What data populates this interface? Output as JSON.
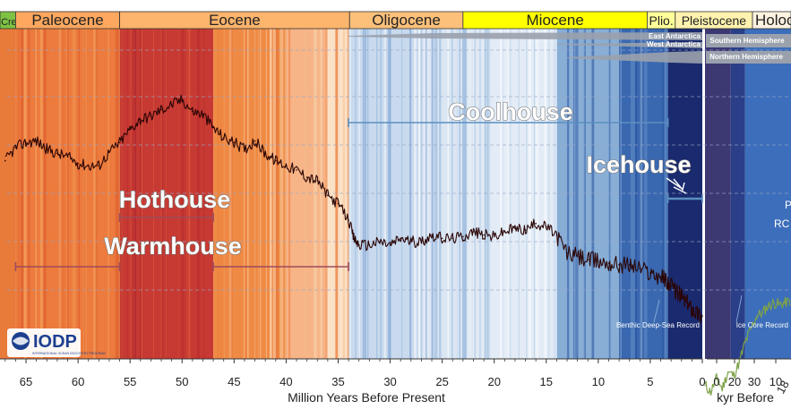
{
  "chart_data": {
    "type": "line",
    "xlabel": "Million Years Before Present",
    "xlabel_right": "kyr Before",
    "xlim_myr": [
      67.5,
      0
    ],
    "xlim_kyr": [
      0,
      15
    ],
    "x_ticks_myr": [
      "65",
      "60",
      "55",
      "50",
      "45",
      "40",
      "35",
      "30",
      "25",
      "20",
      "15",
      "10",
      "5",
      "0"
    ],
    "x_ticks_kyr": [
      "0",
      "20",
      "30",
      "10"
    ],
    "x_ticks_kyr_clipped": "18",
    "epochs": [
      {
        "name": "Cret.",
        "start": 67.5,
        "end": 66.0,
        "color": "#7dc242"
      },
      {
        "name": "Paleocene",
        "start": 66.0,
        "end": 56.0,
        "color": "#fda75f"
      },
      {
        "name": "Eocene",
        "start": 56.0,
        "end": 33.9,
        "color": "#fdb46c"
      },
      {
        "name": "Oligocene",
        "start": 33.9,
        "end": 23.0,
        "color": "#fdc07a"
      },
      {
        "name": "Miocene",
        "start": 23.0,
        "end": 5.3,
        "color": "#ffff00"
      },
      {
        "name": "Plio.",
        "start": 5.3,
        "end": 2.6,
        "color": "#ffff99"
      },
      {
        "name": "Pleistocene",
        "start": 2.6,
        "end": 0.0,
        "color": "#fff2ae"
      },
      {
        "name": "Holocene",
        "start": 0,
        "end": 10,
        "color": "#fef2e0",
        "unit": "kyr"
      }
    ],
    "climate_states": [
      {
        "name": "Hothouse",
        "ranges": [
          [
            56.0,
            47.0
          ]
        ],
        "color": "#9e4b5c"
      },
      {
        "name": "Warmhouse",
        "ranges": [
          [
            66.0,
            56.0
          ],
          [
            47.0,
            34.0
          ]
        ],
        "color": "#9e4b5c"
      },
      {
        "name": "Coolhouse",
        "ranges": [
          [
            34.0,
            3.3
          ]
        ],
        "color": "#5b8fc0"
      },
      {
        "name": "Icehouse",
        "ranges": [
          [
            3.3,
            0.0
          ]
        ],
        "color": "#5b8fc0"
      }
    ],
    "background_bands_myr": [
      {
        "from": 67.5,
        "to": 66.0,
        "color": "#e87a3a"
      },
      {
        "from": 66.0,
        "to": 56.0,
        "color": "#ec7b3d"
      },
      {
        "from": 56.0,
        "to": 47.0,
        "color": "#c73a33"
      },
      {
        "from": 47.0,
        "to": 40.0,
        "color": "#ef8a44"
      },
      {
        "from": 40.0,
        "to": 36.0,
        "color": "#f6b487"
      },
      {
        "from": 36.0,
        "to": 33.9,
        "color": "#fbe1c6"
      },
      {
        "from": 33.9,
        "to": 27.0,
        "color": "#c9daee"
      },
      {
        "from": 27.0,
        "to": 23.0,
        "color": "#dbe6f3"
      },
      {
        "from": 23.0,
        "to": 14.0,
        "color": "#e3ecf6"
      },
      {
        "from": 14.0,
        "to": 8.0,
        "color": "#88aed6"
      },
      {
        "from": 8.0,
        "to": 3.3,
        "color": "#3a68b0"
      },
      {
        "from": 3.3,
        "to": 0.0,
        "color": "#1a2a6e"
      }
    ],
    "background_bands_kyr": [
      {
        "from": 0,
        "to": 4.5,
        "color": "#3b3872"
      },
      {
        "from": 4.5,
        "to": 7,
        "color": "#2a3f88"
      },
      {
        "from": 7,
        "to": 15,
        "color": "#3c6ebb"
      }
    ],
    "ice_sheets": [
      {
        "name": "East Antarctica",
        "start": 34.0,
        "end": 0.0
      },
      {
        "name": "West Antarctica",
        "start": 14.0,
        "end": 0.0
      },
      {
        "name": "Northern Hemisphere",
        "start": 3.0,
        "end": 0.0
      }
    ],
    "ice_sheets_right": [
      "Southern Hemisphere",
      "Northern Hemisphere"
    ],
    "series": [
      {
        "name": "Benthic Deep-Sea Record",
        "color": "#2a0505",
        "x": [
          67,
          66,
          65,
          64,
          63,
          62,
          61,
          60,
          59,
          58,
          57,
          56,
          55,
          54,
          53,
          52,
          51,
          50,
          49,
          48,
          47,
          46,
          45,
          44,
          43,
          42,
          41,
          40,
          39,
          38,
          37,
          36,
          35,
          34,
          33.5,
          33,
          32,
          31,
          30,
          29,
          28,
          27,
          26,
          25,
          24,
          23,
          22,
          21,
          20,
          19,
          18,
          17,
          16,
          15,
          14,
          13,
          12,
          11,
          10,
          9,
          8,
          7,
          6,
          5,
          4,
          3.5,
          3,
          2.5,
          2,
          1.5,
          1,
          0.5,
          0
        ],
        "y": [
          0.5,
          0.9,
          1.05,
          1.1,
          0.85,
          0.72,
          0.62,
          0.42,
          0.35,
          0.35,
          0.75,
          1.05,
          1.45,
          1.75,
          1.85,
          2.05,
          2.2,
          2.35,
          2.0,
          1.9,
          1.5,
          1.2,
          1.05,
          0.85,
          1.1,
          0.72,
          0.5,
          0.35,
          0.22,
          0.0,
          -0.1,
          -0.55,
          -0.8,
          -1.3,
          -1.85,
          -2.05,
          -2.05,
          -1.95,
          -2.05,
          -1.85,
          -1.95,
          -1.95,
          -1.75,
          -1.85,
          -1.85,
          -1.8,
          -1.65,
          -1.75,
          -1.8,
          -1.65,
          -1.55,
          -1.6,
          -1.4,
          -1.5,
          -1.75,
          -2.3,
          -2.4,
          -2.5,
          -2.55,
          -2.6,
          -2.65,
          -2.65,
          -2.75,
          -2.9,
          -3.0,
          -3.1,
          -3.3,
          -3.45,
          -3.6,
          -3.8,
          -3.95,
          -4.1,
          -4.2
        ]
      },
      {
        "name": "Ice Core Record",
        "color": "#7ea24a",
        "x_kyr": [
          0,
          1,
          2,
          3,
          4,
          5,
          6,
          7,
          8,
          9,
          10,
          11,
          12,
          13,
          14,
          15
        ],
        "y": [
          -6.3,
          -6.5,
          -6.1,
          -6.4,
          -5.9,
          -6.0,
          -5.6,
          -5.0,
          -4.6,
          -4.2,
          -4.1,
          -3.9,
          -3.8,
          -3.85,
          -3.8,
          -3.75
        ]
      }
    ]
  },
  "labels": {
    "epochs": [
      "Cret.",
      "Paleocene",
      "Eocene",
      "Oligocene",
      "Miocene",
      "Plio.",
      "Pleistocene",
      "Holoce"
    ],
    "hothouse": "Hothouse",
    "warmhouse": "Warmhouse",
    "coolhouse": "Coolhouse",
    "icehouse": "Icehouse",
    "east_antarctica": "East Antarctica",
    "west_antarctica": "West Antarctica",
    "southern_hemisphere": "Southern Hemisphere",
    "northern_hemisphere": "Northern Hemisphere",
    "benthic_record": "Benthic Deep-Sea Record",
    "ice_core_record": "Ice Core Record",
    "clipped_p": "P",
    "clipped_rc": "RC",
    "logo_text": "IODP",
    "logo_subtext": "INTERNATIONAL OCEAN DISCOVERY PROGRAM"
  },
  "colors": {
    "hot_bar": "#9e4b5c",
    "cool_bar": "#5b8fc0",
    "grid": "#9aa7c7"
  }
}
